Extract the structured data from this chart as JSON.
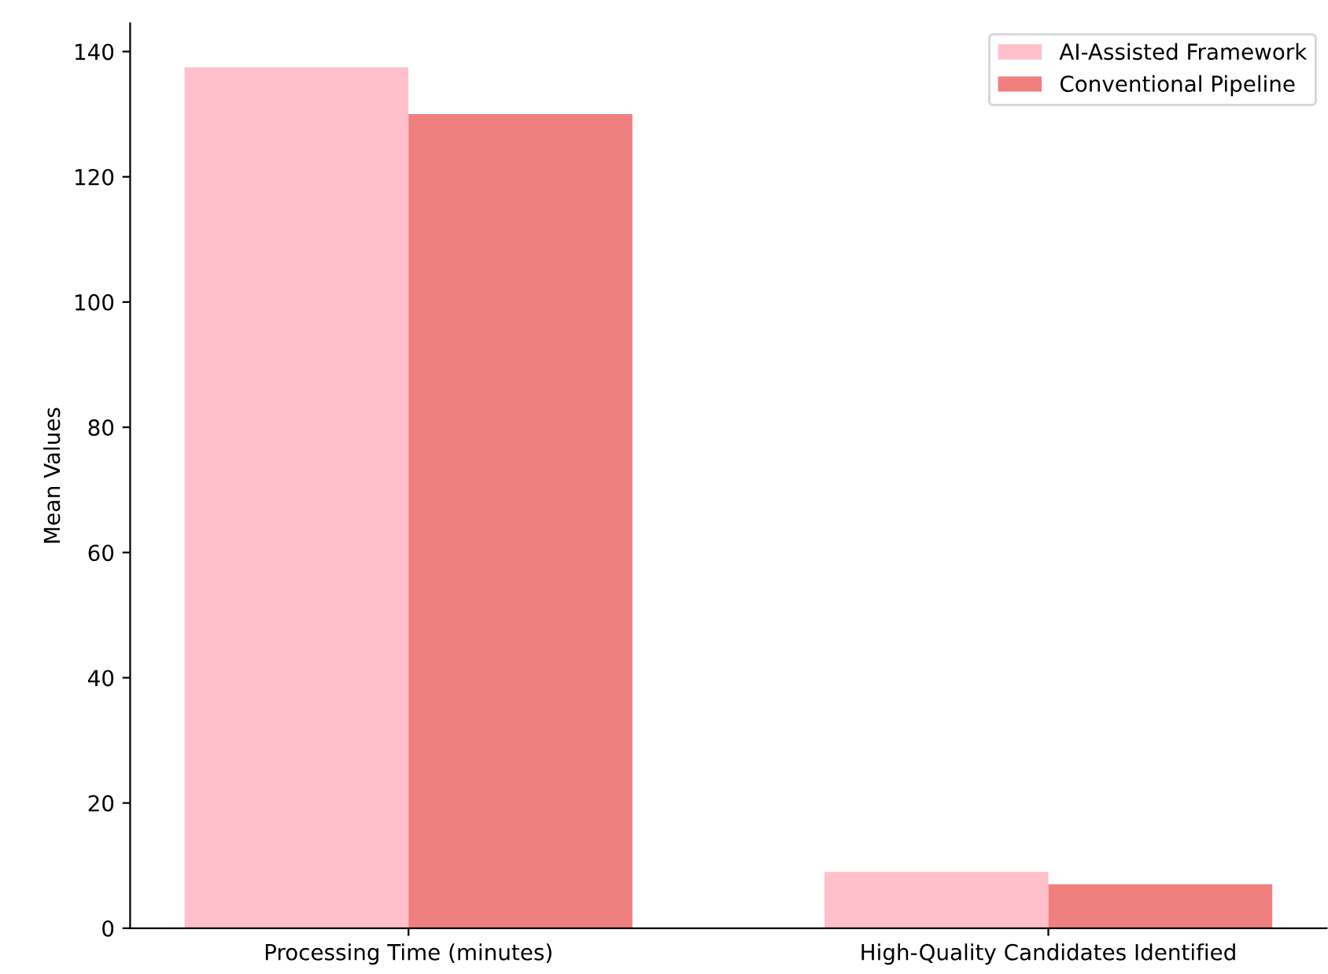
{
  "chart_data": {
    "type": "bar",
    "ylabel": "Mean Values",
    "categories": [
      "Processing Time (minutes)",
      "High-Quality Candidates Identified"
    ],
    "series": [
      {
        "name": "AI-Assisted Framework",
        "color": "#ffc0cb",
        "values": [
          137.5,
          9
        ]
      },
      {
        "name": "Conventional Pipeline",
        "color": "#f08080",
        "values": [
          130,
          7
        ]
      }
    ],
    "ylim": [
      0,
      144.5
    ],
    "yticks": [
      0,
      20,
      40,
      60,
      80,
      100,
      120,
      140
    ],
    "grid": false,
    "legend": "top right"
  }
}
